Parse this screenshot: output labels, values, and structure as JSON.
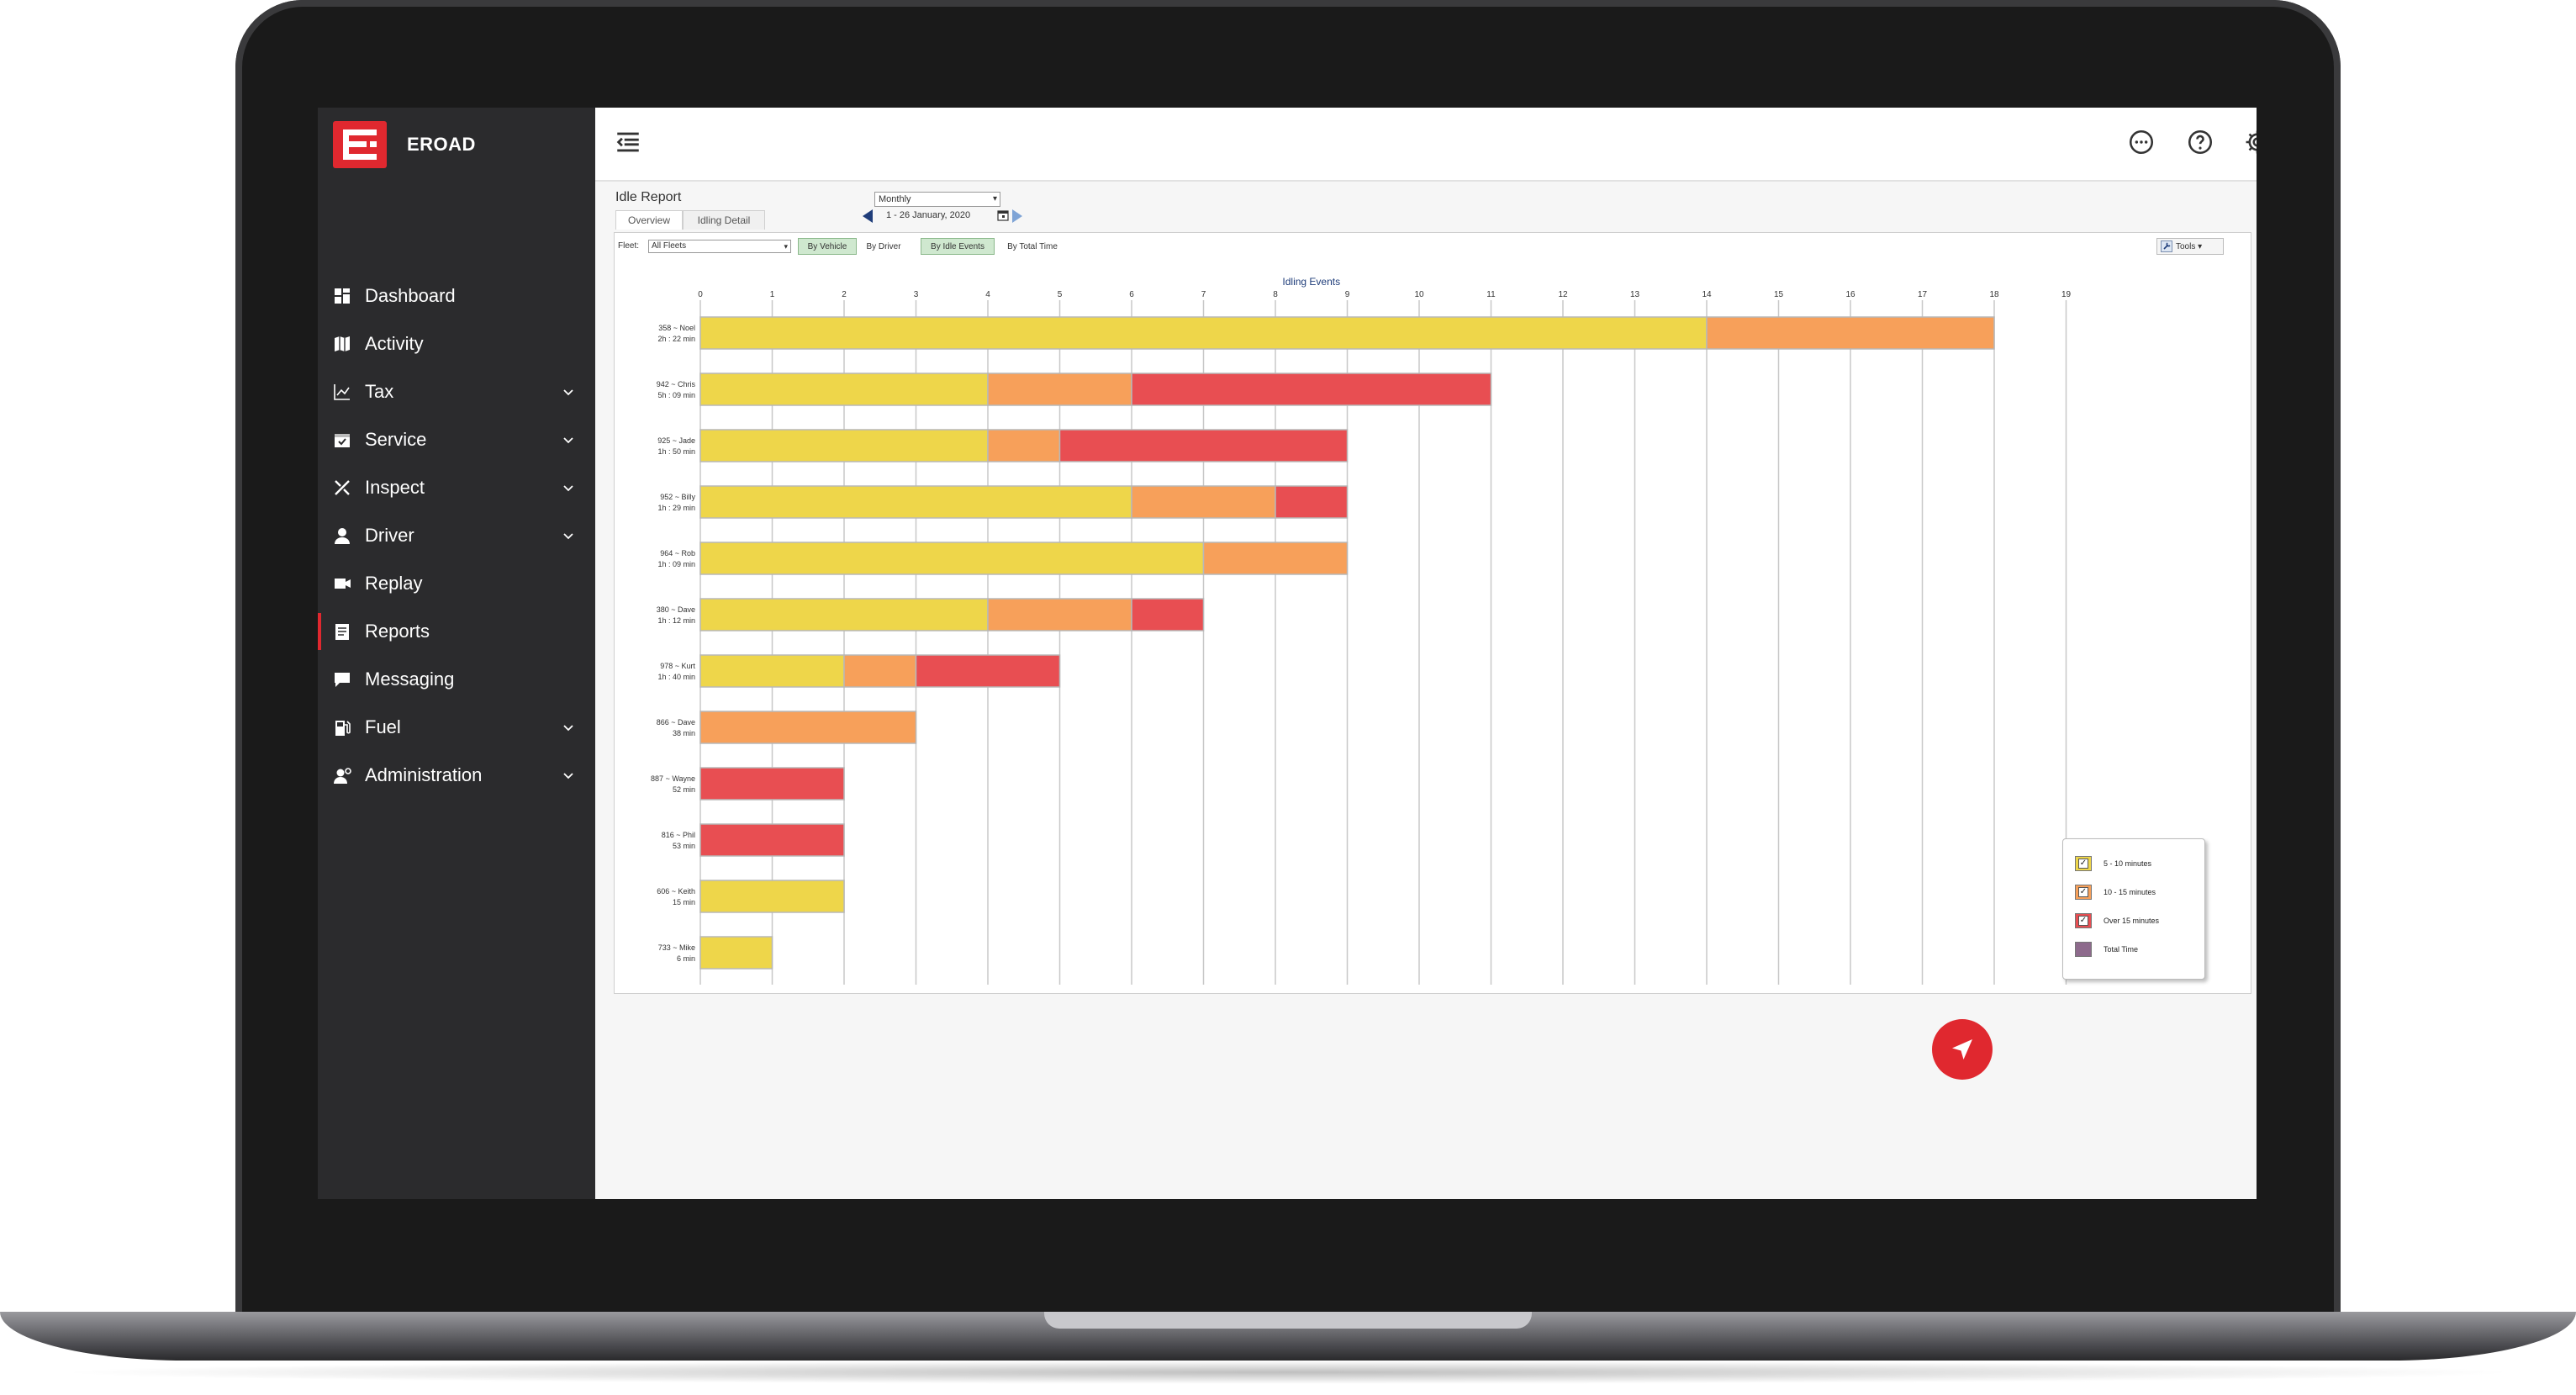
{
  "app": {
    "brand": "EROAD",
    "accent": "#e0282f"
  },
  "sidebar": {
    "items": [
      {
        "label": "Dashboard",
        "icon": "dashboard-icon",
        "has_children": false
      },
      {
        "label": "Activity",
        "icon": "map-icon",
        "has_children": false
      },
      {
        "label": "Tax",
        "icon": "chart-line-icon",
        "has_children": true
      },
      {
        "label": "Service",
        "icon": "calendar-check-icon",
        "has_children": true
      },
      {
        "label": "Inspect",
        "icon": "tools-icon",
        "has_children": true
      },
      {
        "label": "Driver",
        "icon": "person-icon",
        "has_children": true
      },
      {
        "label": "Replay",
        "icon": "video-icon",
        "has_children": false
      },
      {
        "label": "Reports",
        "icon": "report-icon",
        "has_children": false,
        "active": true
      },
      {
        "label": "Messaging",
        "icon": "chat-icon",
        "has_children": false
      },
      {
        "label": "Fuel",
        "icon": "fuel-icon",
        "has_children": true
      },
      {
        "label": "Administration",
        "icon": "admin-icon",
        "has_children": true
      }
    ]
  },
  "topbar": {
    "icons": [
      "menu-collapse-icon",
      "chat-bubble-icon",
      "help-icon",
      "settings-icon"
    ]
  },
  "report": {
    "title": "Idle Report",
    "tabs": [
      {
        "label": "Overview",
        "active": true
      },
      {
        "label": "Idling Detail",
        "active": false
      }
    ],
    "period": "Monthly",
    "date_range": "1 - 26 January, 2020",
    "fleet_label": "Fleet:",
    "fleet_value": "All Fleets",
    "toggles": [
      {
        "label": "By Vehicle",
        "on": true
      },
      {
        "label": "By Driver",
        "on": false
      },
      {
        "label": "By Idle Events",
        "on": true
      },
      {
        "label": "By Total Time",
        "on": false
      }
    ],
    "tools_label": "Tools"
  },
  "chart_data": {
    "type": "bar",
    "orientation": "horizontal",
    "stacked": true,
    "title": "Idling Events",
    "xlim": [
      0,
      19
    ],
    "x_ticks": [
      0,
      1,
      2,
      3,
      4,
      5,
      6,
      7,
      8,
      9,
      10,
      11,
      12,
      13,
      14,
      15,
      16,
      17,
      18,
      19
    ],
    "categories": [
      {
        "name": "358 ~ Noel",
        "time": "2h : 22 min"
      },
      {
        "name": "942 ~ Chris",
        "time": "5h : 09 min"
      },
      {
        "name": "925 ~ Jade",
        "time": "1h : 50 min"
      },
      {
        "name": "952 ~ Billy",
        "time": "1h : 29 min"
      },
      {
        "name": "964 ~ Rob",
        "time": "1h : 09 min"
      },
      {
        "name": "380 ~ Dave",
        "time": "1h : 12 min"
      },
      {
        "name": "978 ~ Kurt",
        "time": "1h : 40 min"
      },
      {
        "name": "866 ~ Dave",
        "time": "38 min"
      },
      {
        "name": "887 ~ Wayne",
        "time": "52 min"
      },
      {
        "name": "816 ~ Phil",
        "time": "53 min"
      },
      {
        "name": "606 ~ Keith",
        "time": "15 min"
      },
      {
        "name": "733 ~ Mike",
        "time": "6 min"
      }
    ],
    "series": [
      {
        "name": "5 - 10 minutes",
        "color": "#eed64a",
        "values": [
          14,
          4,
          4,
          6,
          7,
          4,
          2,
          0,
          0,
          0,
          2,
          1
        ]
      },
      {
        "name": "10 - 15  minutes",
        "color": "#f7a05a",
        "values": [
          4,
          2,
          1,
          2,
          2,
          2,
          1,
          3,
          0,
          0,
          0,
          0
        ]
      },
      {
        "name": "Over 15  minutes",
        "color": "#e84e52",
        "values": [
          0,
          5,
          4,
          1,
          0,
          1,
          2,
          0,
          2,
          2,
          0,
          0
        ]
      }
    ],
    "legend": [
      {
        "label": "5 - 10 minutes",
        "color": "#eed64a",
        "checked": true
      },
      {
        "label": "10 - 15  minutes",
        "color": "#f7a05a",
        "checked": true
      },
      {
        "label": "Over 15  minutes",
        "color": "#e84e52",
        "checked": true
      },
      {
        "label": "Total Time",
        "color": "#8d6a8c",
        "checked": false
      }
    ],
    "legend_position": "bottom-right"
  },
  "fab": {
    "icon": "navigate-arrow-icon"
  }
}
